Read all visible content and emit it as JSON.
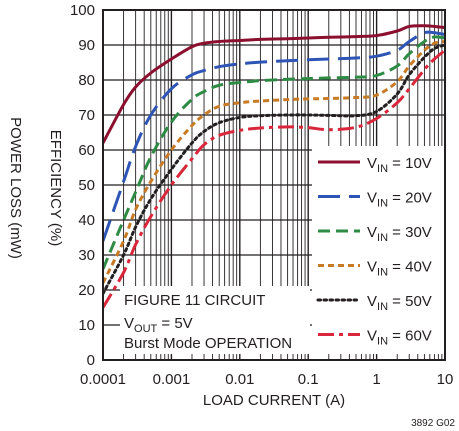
{
  "chart_data": {
    "type": "line",
    "xlabel": "LOAD CURRENT (A)",
    "ylabel": "EFFICIENCY (%)",
    "ylabel_secondary": "POWER LOSS (mW)",
    "x_scale": "log",
    "xlim": [
      0.0001,
      10
    ],
    "ylim": [
      0,
      100
    ],
    "grid": true,
    "x_ticks": [
      "0.0001",
      "0.001",
      "0.01",
      "0.1",
      "1",
      "10"
    ],
    "y_ticks": [
      "0",
      "10",
      "20",
      "30",
      "40",
      "50",
      "60",
      "70",
      "80",
      "90",
      "100"
    ],
    "legend_position": "right",
    "annotation_lines": [
      "FIGURE 11 CIRCUIT",
      "V",
      "OUT",
      " = 5V",
      "Burst Mode OPERATION"
    ],
    "figure_code": "3892 G02",
    "series": [
      {
        "name_main": "V",
        "name_sub": "IN",
        "name_suffix": " = 10V",
        "color": "#8b0f2e",
        "dash": "solid",
        "x": [
          0.0001,
          0.0002,
          0.0003,
          0.0005,
          0.001,
          0.002,
          0.003,
          0.005,
          0.01,
          0.02,
          0.05,
          0.1,
          0.2,
          0.5,
          1,
          2,
          3,
          5,
          7,
          10
        ],
        "y": [
          62,
          73,
          78,
          82,
          86,
          89.5,
          90.5,
          91,
          91.3,
          91.6,
          91.8,
          92,
          92.2,
          92.4,
          92.7,
          94,
          95.3,
          95.5,
          95.3,
          95
        ]
      },
      {
        "name_main": "V",
        "name_sub": "IN",
        "name_suffix": " = 20V",
        "color": "#2e55b6",
        "dash": "long",
        "x": [
          0.0001,
          0.0002,
          0.0003,
          0.0005,
          0.001,
          0.002,
          0.003,
          0.005,
          0.01,
          0.02,
          0.05,
          0.1,
          0.2,
          0.5,
          1,
          2,
          3,
          5,
          7,
          10
        ],
        "y": [
          34,
          51,
          61,
          70,
          77.5,
          81.5,
          82.7,
          83.8,
          84.6,
          85.1,
          85.5,
          85.8,
          86,
          86.3,
          86.8,
          88.5,
          91,
          93.5,
          93.5,
          93
        ]
      },
      {
        "name_main": "V",
        "name_sub": "IN",
        "name_suffix": " = 30V",
        "color": "#2e8b44",
        "dash": "medium",
        "x": [
          0.0001,
          0.0002,
          0.0003,
          0.0005,
          0.001,
          0.002,
          0.003,
          0.005,
          0.01,
          0.02,
          0.05,
          0.1,
          0.2,
          0.5,
          1,
          2,
          3,
          5,
          7,
          10
        ],
        "y": [
          26,
          40,
          48,
          58,
          68,
          74.5,
          76.7,
          78.5,
          79.3,
          79.8,
          80.2,
          80.4,
          80.6,
          80.8,
          81.3,
          84,
          87.5,
          91,
          92.3,
          92
        ]
      },
      {
        "name_main": "V",
        "name_sub": "IN",
        "name_suffix": " = 40V",
        "color": "#c87a24",
        "dash": "short",
        "x": [
          0.0001,
          0.0002,
          0.0003,
          0.0005,
          0.001,
          0.002,
          0.003,
          0.005,
          0.01,
          0.02,
          0.05,
          0.1,
          0.2,
          0.5,
          1,
          2,
          3,
          5,
          7,
          10
        ],
        "y": [
          22,
          34,
          43,
          51,
          60,
          67,
          70,
          72.5,
          73.5,
          74,
          74.4,
          74.6,
          74.7,
          75,
          75.7,
          79.5,
          84,
          88.5,
          90.5,
          91
        ]
      },
      {
        "name_main": "V",
        "name_sub": "IN",
        "name_suffix": " = 50V",
        "color": "#231f20",
        "dash": "dot",
        "x": [
          0.0001,
          0.0002,
          0.0003,
          0.0005,
          0.001,
          0.002,
          0.003,
          0.005,
          0.01,
          0.02,
          0.05,
          0.1,
          0.2,
          0.5,
          1,
          2,
          3,
          5,
          7,
          10
        ],
        "y": [
          19,
          30,
          38,
          46,
          54.5,
          62,
          65.3,
          67.8,
          69.3,
          69.8,
          70,
          70,
          69.9,
          69.8,
          71,
          76,
          81.5,
          86.5,
          89,
          90
        ]
      },
      {
        "name_main": "V",
        "name_sub": "IN",
        "name_suffix": " = 60V",
        "color": "#d9263a",
        "dash": "dashdot",
        "x": [
          0.0001,
          0.0002,
          0.0003,
          0.0005,
          0.001,
          0.002,
          0.003,
          0.005,
          0.01,
          0.02,
          0.05,
          0.1,
          0.2,
          0.5,
          1,
          2,
          3,
          5,
          7,
          10
        ],
        "y": [
          15,
          25,
          33,
          41,
          50,
          57.5,
          61.5,
          64.2,
          65.6,
          66.3,
          66.6,
          66.4,
          65.8,
          66.5,
          69,
          73.5,
          77.5,
          83,
          86,
          88.5
        ]
      }
    ]
  }
}
